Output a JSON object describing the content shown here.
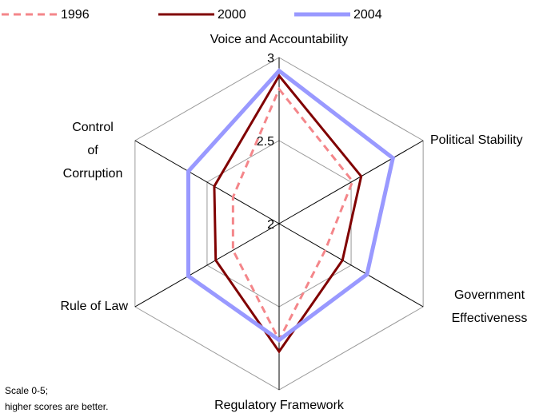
{
  "chart_data": {
    "type": "radar",
    "categories": [
      "Voice and Accountability",
      "Political Stability",
      "Government Effectiveness",
      "Regulatory Framework",
      "Rule of Law",
      "Control of Corruption"
    ],
    "series": [
      {
        "name": "1996",
        "color": "#f4868a",
        "dashed": true,
        "values": [
          2.81,
          2.51,
          2.32,
          2.7,
          2.32,
          2.32
        ]
      },
      {
        "name": "2000",
        "color": "#800000",
        "values": [
          2.89,
          2.57,
          2.44,
          2.77,
          2.44,
          2.45
        ]
      },
      {
        "name": "2004",
        "color": "#9999ff",
        "values": [
          2.92,
          2.79,
          2.61,
          2.7,
          2.63,
          2.63
        ]
      }
    ],
    "rlim": [
      2,
      3
    ],
    "rticks": [
      2,
      2.5,
      3
    ],
    "annotation": [
      "Scale 0-5;",
      "higher scores are better."
    ]
  }
}
